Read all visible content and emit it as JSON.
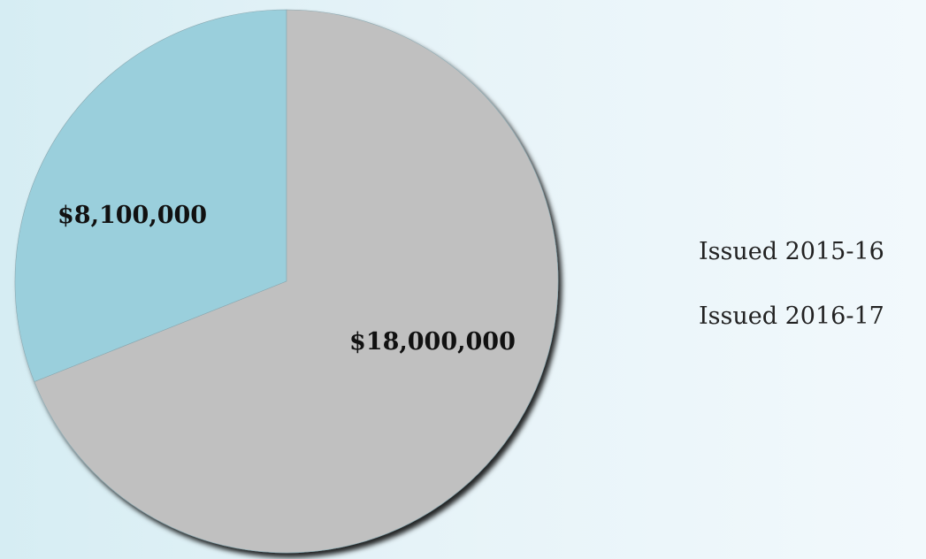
{
  "chart_data": {
    "type": "pie",
    "title": "",
    "categories": [
      "Issued 2015-16",
      "Issued 2016-17"
    ],
    "values": [
      8100000,
      18000000
    ],
    "data_labels": [
      "$8,100,000",
      "$18,000,000"
    ],
    "colors": [
      "#9acfdc",
      "#c0c0c0"
    ],
    "start_angle_deg": 0,
    "legend_placement": "right",
    "legend": [
      "Issued 2015-16",
      "Issued 2016-17"
    ],
    "grid": false
  }
}
